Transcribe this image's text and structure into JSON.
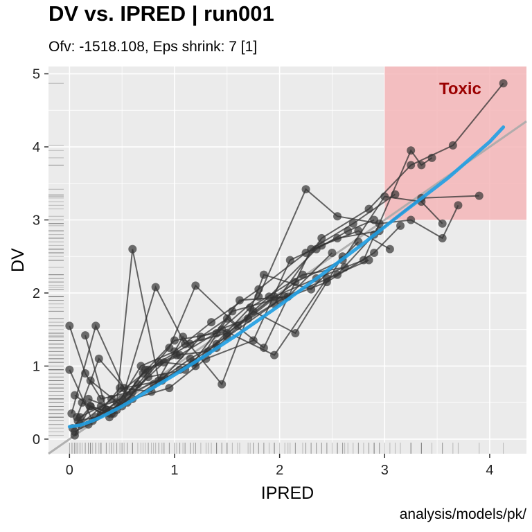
{
  "title": "DV vs. IPRED | run001",
  "subtitle": "Ofv: -1518.108, Eps shrink: 7 [1]",
  "caption": "analysis/models/pk/",
  "colors": {
    "panel_background": "#ebebeb",
    "grid": "#ffffff",
    "points": "#333333",
    "smooth": "#1f9fe3",
    "identity": "#aaaaaa",
    "toxic_fill": "#f4b6b8",
    "toxic_text": "#9b0000",
    "rug": "#555555"
  },
  "chart_data": {
    "type": "scatter",
    "title": "DV vs. IPRED | run001",
    "subtitle": "Ofv: -1518.108, Eps shrink: 7 [1]",
    "xlabel": "IPRED",
    "ylabel": "DV",
    "xlim": [
      -0.2,
      4.35
    ],
    "ylim": [
      -0.2,
      5.1
    ],
    "xticks": [
      0,
      1,
      2,
      3,
      4
    ],
    "yticks": [
      0,
      1,
      2,
      3,
      4,
      5
    ],
    "grid": true,
    "rug": true,
    "reference_line": "identity",
    "toxic_region": {
      "label": "Toxic",
      "x": [
        3,
        4.35
      ],
      "y": [
        3,
        5.1
      ]
    },
    "smooth": {
      "x": [
        0.0,
        0.1,
        0.2,
        0.3,
        0.5,
        0.7,
        1.0,
        1.3,
        1.6,
        2.0,
        2.4,
        2.8,
        3.2,
        3.6,
        4.0,
        4.13
      ],
      "y": [
        0.17,
        0.19,
        0.24,
        0.3,
        0.45,
        0.62,
        0.88,
        1.15,
        1.43,
        1.83,
        2.25,
        2.68,
        3.13,
        3.57,
        4.07,
        4.27
      ]
    },
    "subjects": [
      {
        "x": [
          0.05,
          0.18,
          0.35,
          0.55,
          0.8,
          1.05,
          1.4,
          1.9,
          2.35,
          2.65,
          2.9
        ],
        "y": [
          0.1,
          0.2,
          0.4,
          0.5,
          0.75,
          0.95,
          1.3,
          1.95,
          2.6,
          2.85,
          3.0
        ]
      },
      {
        "x": [
          0.0,
          0.15,
          0.3,
          0.6,
          0.9,
          1.2,
          1.55,
          2.05,
          2.55,
          2.9,
          3.35,
          3.9
        ],
        "y": [
          1.55,
          0.9,
          0.55,
          0.65,
          1.05,
          1.0,
          1.75,
          1.95,
          2.25,
          2.8,
          3.3,
          3.33
        ]
      },
      {
        "x": [
          0.08,
          0.25,
          0.45,
          0.6,
          0.85,
          1.15,
          1.5,
          1.95,
          2.4,
          2.85,
          3.25,
          3.65,
          4.13
        ],
        "y": [
          0.25,
          0.3,
          0.5,
          2.6,
          0.8,
          1.1,
          1.4,
          1.85,
          2.75,
          3.15,
          3.75,
          4.02,
          4.87
        ]
      },
      {
        "x": [
          0.1,
          0.3,
          0.5,
          0.82,
          1.1,
          1.5,
          1.95,
          2.35,
          2.8,
          3.25,
          3.35,
          3.45
        ],
        "y": [
          0.3,
          0.45,
          0.55,
          2.08,
          1.3,
          1.45,
          1.95,
          2.2,
          2.45,
          3.95,
          3.75,
          3.85
        ]
      },
      {
        "x": [
          0.05,
          0.2,
          0.4,
          0.7,
          1.0,
          1.4,
          1.8,
          2.25,
          2.55,
          2.95,
          3.25,
          3.55,
          3.7
        ],
        "y": [
          0.05,
          0.45,
          0.35,
          0.9,
          1.35,
          1.45,
          1.95,
          3.42,
          3.05,
          2.95,
          3.0,
          2.75,
          3.2
        ]
      },
      {
        "x": [
          0.02,
          0.25,
          0.55,
          0.9,
          1.25,
          1.7,
          2.15,
          2.6,
          3.0,
          3.35,
          3.55
        ],
        "y": [
          0.35,
          1.55,
          0.6,
          0.85,
          1.4,
          1.65,
          2.15,
          2.45,
          3.32,
          3.25,
          2.95
        ]
      },
      {
        "x": [
          0.15,
          0.35,
          0.65,
          0.95,
          1.2,
          1.6,
          2.0,
          2.45,
          2.9,
          3.15
        ],
        "y": [
          1.42,
          0.4,
          0.75,
          1.25,
          2.1,
          1.55,
          1.9,
          2.15,
          2.55,
          2.92
        ]
      },
      {
        "x": [
          0.05,
          0.3,
          0.6,
          0.95,
          1.3,
          1.75,
          2.1,
          2.4,
          2.75,
          3.05
        ],
        "y": [
          0.6,
          0.35,
          0.55,
          0.7,
          1.1,
          1.35,
          2.45,
          2.65,
          2.85,
          2.6
        ]
      },
      {
        "x": [
          0.1,
          0.4,
          0.75,
          1.05,
          1.45,
          1.95,
          2.45,
          2.85
        ],
        "y": [
          0.2,
          0.55,
          0.95,
          1.15,
          1.5,
          1.15,
          2.2,
          2.45
        ]
      },
      {
        "x": [
          0.2,
          0.5,
          0.85,
          1.15,
          1.5,
          1.85,
          2.3,
          2.7,
          3.1
        ],
        "y": [
          0.8,
          0.45,
          1.05,
          1.3,
          1.65,
          1.25,
          2.6,
          2.95,
          3.35
        ]
      },
      {
        "x": [
          0.0,
          0.22,
          0.48,
          0.78,
          1.08,
          1.45,
          1.85,
          2.3,
          2.75
        ],
        "y": [
          0.95,
          0.25,
          0.7,
          0.65,
          1.4,
          0.75,
          2.25,
          2.05,
          2.7
        ]
      },
      {
        "x": [
          0.12,
          0.38,
          0.68,
          1.0,
          1.35,
          1.8,
          2.25,
          2.55,
          2.95
        ],
        "y": [
          0.5,
          0.3,
          1.0,
          1.2,
          1.6,
          2.05,
          2.55,
          2.75,
          2.85
        ]
      },
      {
        "x": [
          0.07,
          0.28,
          0.52,
          0.88,
          1.18,
          1.62,
          2.08,
          2.5
        ],
        "y": [
          0.3,
          1.1,
          0.7,
          0.8,
          1.05,
          1.9,
          1.95,
          2.55
        ]
      },
      {
        "x": [
          0.03,
          0.2,
          0.42,
          0.72,
          1.02,
          1.32,
          1.72,
          2.22,
          2.62
        ],
        "y": [
          0.15,
          0.45,
          0.35,
          0.95,
          1.15,
          1.2,
          1.8,
          2.25,
          2.35
        ]
      },
      {
        "x": [
          0.18,
          0.45,
          0.75,
          1.1,
          1.4,
          1.75,
          2.15,
          2.6
        ],
        "y": [
          0.55,
          0.4,
          0.85,
          0.95,
          1.25,
          1.75,
          1.45,
          2.5
        ]
      }
    ]
  }
}
